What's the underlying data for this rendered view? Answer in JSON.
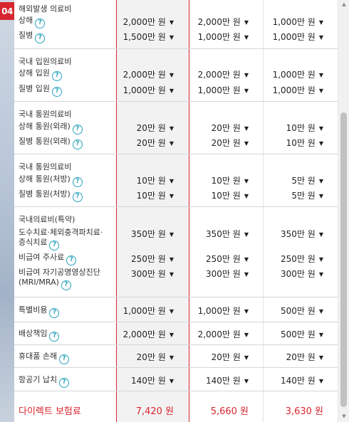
{
  "step_badge": "04",
  "sections": [
    {
      "title": "해외발생 의료비",
      "items": [
        {
          "label": "상해",
          "help": true,
          "values": [
            "2,000만 원",
            "2,000만 원",
            "1,000만 원"
          ]
        },
        {
          "label": "질병",
          "help": true,
          "values": [
            "1,500만 원",
            "1,000만 원",
            "1,000만 원"
          ]
        }
      ]
    },
    {
      "title": "국내 입원의료비",
      "items": [
        {
          "label": "상해 입원",
          "help": true,
          "values": [
            "2,000만 원",
            "2,000만 원",
            "1,000만 원"
          ]
        },
        {
          "label": "질병 입원",
          "help": true,
          "values": [
            "1,000만 원",
            "1,000만 원",
            "1,000만 원"
          ]
        }
      ]
    },
    {
      "title": "국내 통원의료비",
      "items": [
        {
          "label": "상해 통원(외래)",
          "help": true,
          "values": [
            "20만 원",
            "20만 원",
            "10만 원"
          ]
        },
        {
          "label": "질병 통원(외래)",
          "help": true,
          "values": [
            "20만 원",
            "20만 원",
            "10만 원"
          ]
        }
      ]
    },
    {
      "title": "국내 통원의료비",
      "items": [
        {
          "label": "상해 통원(처방)",
          "help": true,
          "values": [
            "10만 원",
            "10만 원",
            "5만 원"
          ]
        },
        {
          "label": "질병 통원(처방)",
          "help": true,
          "values": [
            "10만 원",
            "10만 원",
            "5만 원"
          ]
        }
      ]
    },
    {
      "title": "국내의료비(특약)",
      "items": [
        {
          "label": "도수치료·체외충격파치료·",
          "label2": "증식치료",
          "help": true,
          "values": [
            "350만 원",
            "350만 원",
            "350만 원"
          ]
        },
        {
          "label": "비급여 주사료",
          "help": true,
          "values": [
            "250만 원",
            "250만 원",
            "250만 원"
          ]
        },
        {
          "label": "비급여 자기공명영상진단",
          "label2": "(MRI/MRA)",
          "help": true,
          "values": [
            "300만 원",
            "300만 원",
            "300만 원"
          ]
        }
      ]
    }
  ],
  "single_rows": [
    {
      "label": "특별비용",
      "help": true,
      "values": [
        "1,000만 원",
        "1,000만 원",
        "500만 원"
      ]
    },
    {
      "label": "배상책임",
      "help": true,
      "values": [
        "2,000만 원",
        "2,000만 원",
        "500만 원"
      ]
    },
    {
      "label": "휴대품 손해",
      "help": true,
      "values": [
        "20만 원",
        "20만 원",
        "20만 원"
      ]
    },
    {
      "label": "항공기 납치",
      "help": true,
      "values": [
        "140만 원",
        "140만 원",
        "140만 원"
      ]
    }
  ],
  "help_glyph": "?",
  "arrow_glyph": "▼",
  "premium": {
    "label": "다이렉트 보험료",
    "values": [
      "7,420 원",
      "5,660 원",
      "3,630 원"
    ]
  },
  "colors": {
    "accent": "#d7262f",
    "help": "#2aa3bd",
    "selected_column_bg": "#f2f2f2"
  }
}
